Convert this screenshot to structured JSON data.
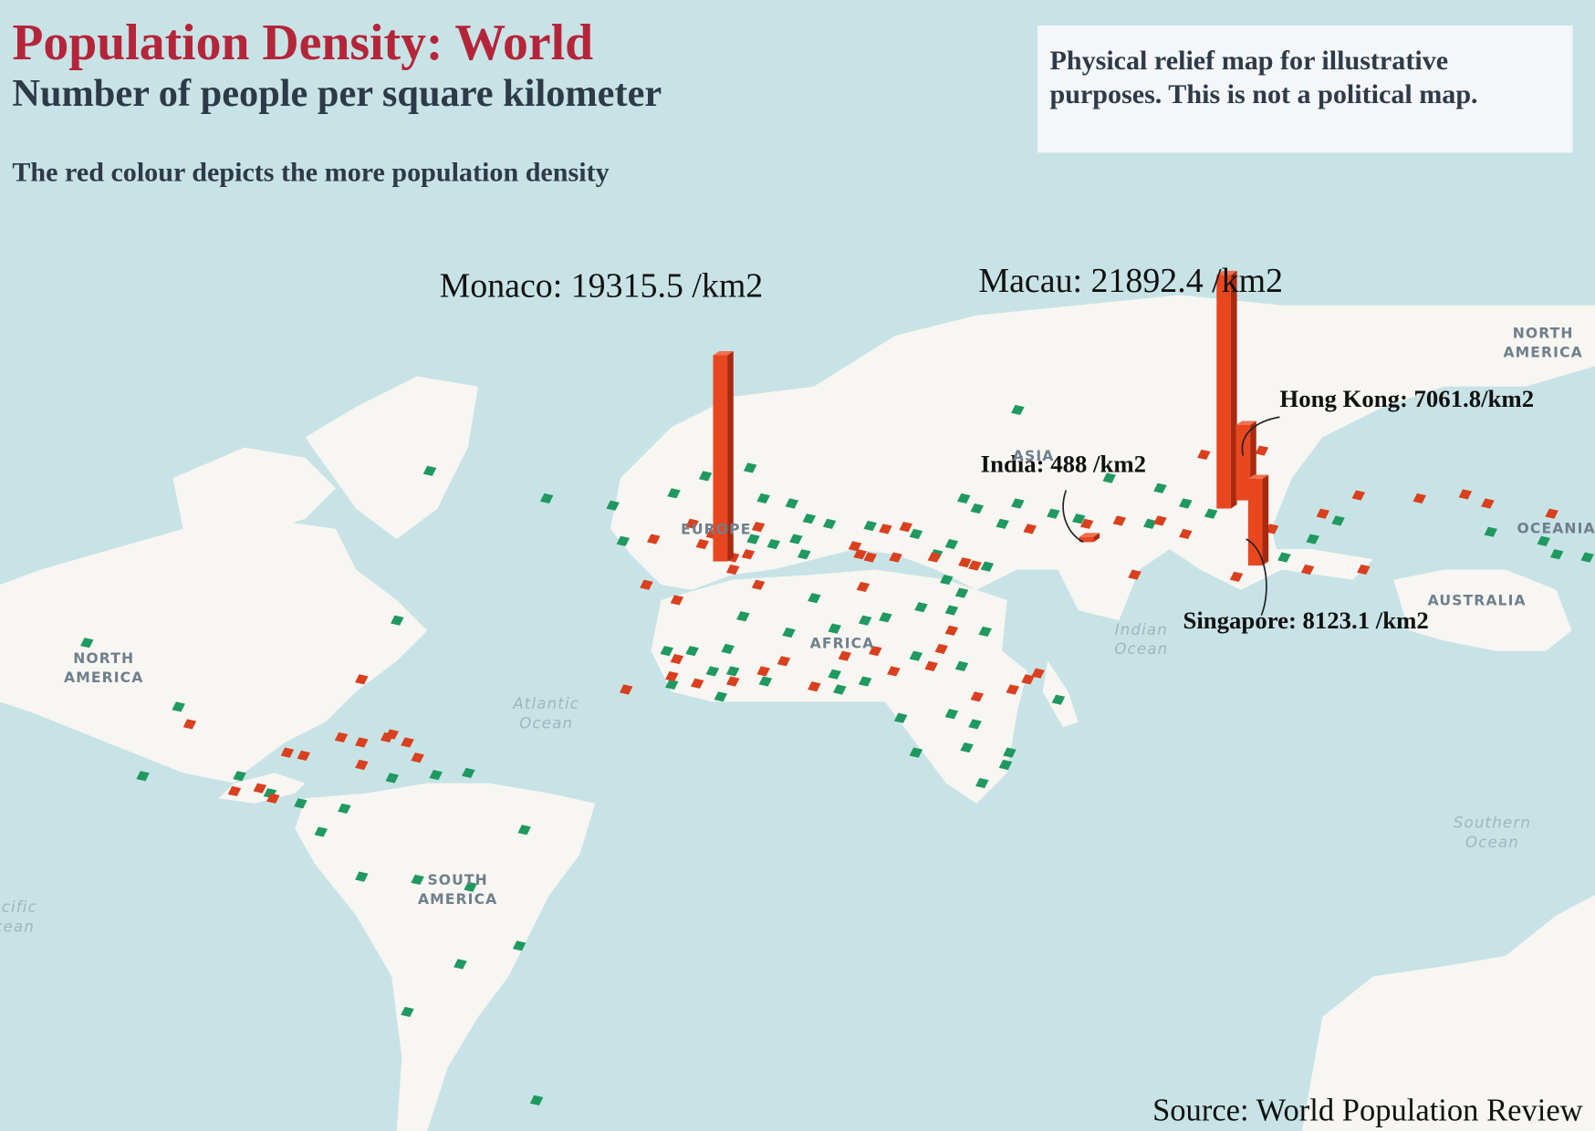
{
  "header": {
    "title": "Population Density: World",
    "subtitle": "Number of people per square kilometer",
    "note": "The red colour depicts the more population density"
  },
  "disclaimer": [
    "Physical relief map for illustrative",
    "purposes. This is not a political map."
  ],
  "highlights": [
    {
      "label": "Monaco: 19315.5 /km2",
      "value": 19315.5
    },
    {
      "label": "Macau: 21892.4 /km2",
      "value": 21892.4
    },
    {
      "label": "Hong Kong: 7061.8/km2",
      "value": 7061.8
    },
    {
      "label": "India: 488 /km2",
      "value": 488
    },
    {
      "label": "Singapore: 8123.1 /km2",
      "value": 8123.1
    }
  ],
  "map_labels": [
    {
      "lines": [
        "NORTH",
        "AMERICA"
      ]
    },
    {
      "lines": [
        "SOUTH",
        "AMERICA"
      ]
    },
    {
      "lines": [
        "AFRICA"
      ]
    },
    {
      "lines": [
        "EUROPE"
      ]
    },
    {
      "lines": [
        "ASIA"
      ]
    },
    {
      "lines": [
        "NORTH",
        "AMERICA"
      ]
    },
    {
      "lines": [
        "OCEANIA"
      ]
    },
    {
      "lines": [
        "AUSTRALIA"
      ]
    },
    {
      "lines": [
        "Atlantic",
        "Ocean"
      ]
    },
    {
      "lines": [
        "Indian",
        "Ocean"
      ]
    },
    {
      "lines": [
        "Southern",
        "Ocean"
      ]
    },
    {
      "lines": [
        "acific",
        "cean"
      ]
    }
  ],
  "source": "Source: World Population Review"
}
